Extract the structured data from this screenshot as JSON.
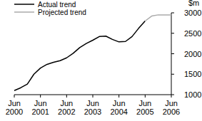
{
  "chart_data": {
    "type": "line",
    "y_label": "$m",
    "categories": [
      "Jun 2000",
      null,
      null,
      null,
      "Jun 2001",
      null,
      null,
      null,
      "Jun 2002",
      null,
      null,
      null,
      "Jun 2003",
      null,
      null,
      null,
      "Jun 2004",
      null,
      null,
      null,
      "Jun 2005",
      null,
      null,
      null,
      "Jun 2006"
    ],
    "series": [
      {
        "name": "Actual trend",
        "color": "#000000",
        "values": [
          1100,
          1170,
          1260,
          1500,
          1650,
          1740,
          1790,
          1830,
          1900,
          2010,
          2150,
          2250,
          2330,
          2420,
          2430,
          2350,
          2290,
          2300,
          2420,
          2620,
          2800,
          null,
          null,
          null,
          null
        ]
      },
      {
        "name": "Projected trend",
        "color": "#aaaaaa",
        "values": [
          null,
          null,
          null,
          null,
          null,
          null,
          null,
          null,
          null,
          null,
          null,
          null,
          null,
          null,
          null,
          null,
          null,
          null,
          null,
          null,
          2800,
          2920,
          2950,
          2950,
          2950
        ]
      }
    ],
    "ylim": [
      1000,
      3000
    ],
    "yticks": [
      1000,
      1500,
      2000,
      2500,
      3000
    ],
    "grid": false,
    "legend": "top-left"
  }
}
